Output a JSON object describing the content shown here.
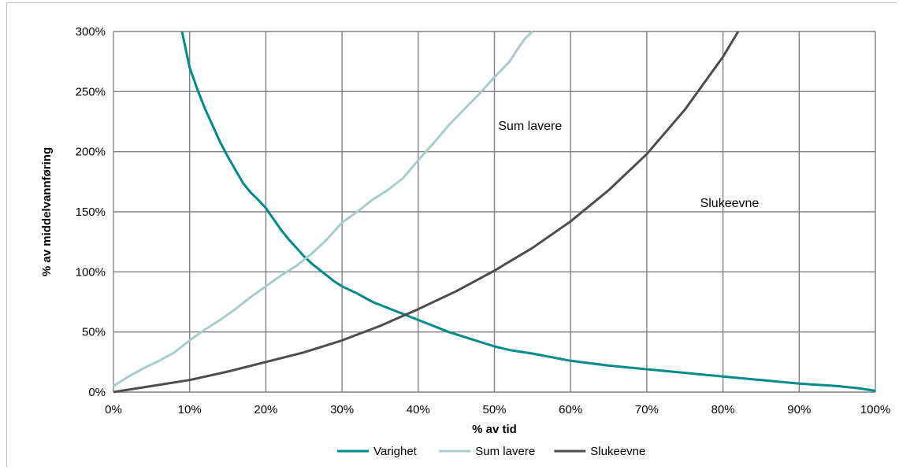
{
  "chart_data": {
    "type": "line",
    "xlabel": "% av tid",
    "ylabel": "% av middelvannføring",
    "xlim": [
      0,
      100
    ],
    "ylim": [
      0,
      300
    ],
    "x_ticks": [
      "0%",
      "10%",
      "20%",
      "30%",
      "40%",
      "50%",
      "60%",
      "70%",
      "80%",
      "90%",
      "100%"
    ],
    "y_ticks": [
      "0%",
      "50%",
      "100%",
      "150%",
      "200%",
      "250%",
      "300%"
    ],
    "grid": true,
    "legend_placement": "bottom",
    "series": [
      {
        "name": "Varighet",
        "color": "#008b8b",
        "points": [
          [
            9.0,
            300
          ],
          [
            10,
            270
          ],
          [
            11,
            252
          ],
          [
            12,
            236
          ],
          [
            13,
            222
          ],
          [
            14,
            208
          ],
          [
            15,
            196
          ],
          [
            16,
            185
          ],
          [
            17,
            174
          ],
          [
            18,
            166
          ],
          [
            19,
            160
          ],
          [
            20,
            153
          ],
          [
            21,
            144
          ],
          [
            22,
            135
          ],
          [
            23,
            127
          ],
          [
            24,
            120
          ],
          [
            25,
            113
          ],
          [
            26,
            107
          ],
          [
            27,
            102
          ],
          [
            28,
            97
          ],
          [
            29,
            92
          ],
          [
            30,
            88
          ],
          [
            32,
            82
          ],
          [
            34,
            75
          ],
          [
            36,
            70
          ],
          [
            38,
            65
          ],
          [
            40,
            60
          ],
          [
            42,
            55
          ],
          [
            44,
            50
          ],
          [
            46,
            46
          ],
          [
            48,
            42
          ],
          [
            50,
            38
          ],
          [
            52,
            35
          ],
          [
            55,
            32
          ],
          [
            60,
            26
          ],
          [
            65,
            22
          ],
          [
            70,
            19
          ],
          [
            75,
            16
          ],
          [
            80,
            13
          ],
          [
            85,
            10
          ],
          [
            90,
            7
          ],
          [
            95,
            5
          ],
          [
            98,
            3
          ],
          [
            100,
            1
          ]
        ]
      },
      {
        "name": "Sum lavere",
        "color": "#a8cccc",
        "points": [
          [
            0,
            5
          ],
          [
            2,
            13
          ],
          [
            4,
            20
          ],
          [
            6,
            26
          ],
          [
            8,
            33
          ],
          [
            10,
            43
          ],
          [
            12,
            52
          ],
          [
            14,
            60
          ],
          [
            16,
            69
          ],
          [
            18,
            79
          ],
          [
            20,
            88
          ],
          [
            22,
            97
          ],
          [
            24,
            105
          ],
          [
            26,
            115
          ],
          [
            28,
            127
          ],
          [
            30,
            141
          ],
          [
            32,
            150
          ],
          [
            34,
            160
          ],
          [
            36,
            168
          ],
          [
            38,
            178
          ],
          [
            40,
            193
          ],
          [
            42,
            207
          ],
          [
            44,
            222
          ],
          [
            46,
            235
          ],
          [
            48,
            248
          ],
          [
            50,
            262
          ],
          [
            52,
            275
          ],
          [
            53,
            285
          ],
          [
            54,
            294
          ],
          [
            55,
            300
          ]
        ]
      },
      {
        "name": "Slukeevne",
        "color": "#4d4d4d",
        "points": [
          [
            0,
            0
          ],
          [
            5,
            5
          ],
          [
            10,
            10
          ],
          [
            15,
            17
          ],
          [
            20,
            25
          ],
          [
            25,
            33
          ],
          [
            30,
            43
          ],
          [
            35,
            55
          ],
          [
            40,
            69
          ],
          [
            45,
            84
          ],
          [
            50,
            101
          ],
          [
            55,
            120
          ],
          [
            60,
            142
          ],
          [
            65,
            168
          ],
          [
            70,
            198
          ],
          [
            75,
            235
          ],
          [
            80,
            279
          ],
          [
            82,
            300
          ]
        ]
      }
    ],
    "annotations": [
      {
        "text": "Sum lavere",
        "x": 50.5,
        "y": 222
      },
      {
        "text": "Slukeevne",
        "x": 77,
        "y": 158
      }
    ]
  }
}
